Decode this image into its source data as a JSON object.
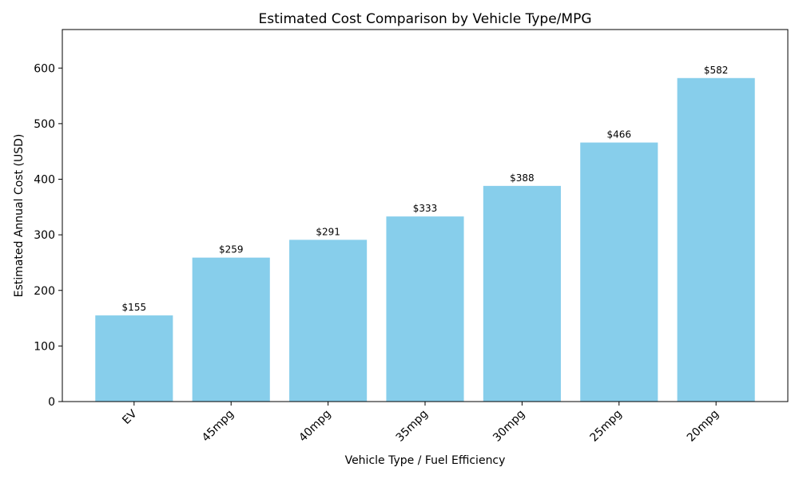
{
  "chart_data": {
    "type": "bar",
    "title": "Estimated Cost Comparison by Vehicle Type/MPG",
    "xlabel": "Vehicle Type / Fuel Efficiency",
    "ylabel": "Estimated Annual Cost (USD)",
    "categories": [
      "EV",
      "45mpg",
      "40mpg",
      "35mpg",
      "30mpg",
      "25mpg",
      "20mpg"
    ],
    "values": [
      155,
      259,
      291,
      333,
      388,
      466,
      582
    ],
    "data_labels": [
      "$155",
      "$259",
      "$291",
      "$333",
      "$388",
      "$466",
      "$582"
    ],
    "ylim": [
      0,
      669.3
    ],
    "yticks": [
      0,
      100,
      200,
      300,
      400,
      500,
      600
    ],
    "grid": false,
    "bar_color": "#87CEEB"
  }
}
